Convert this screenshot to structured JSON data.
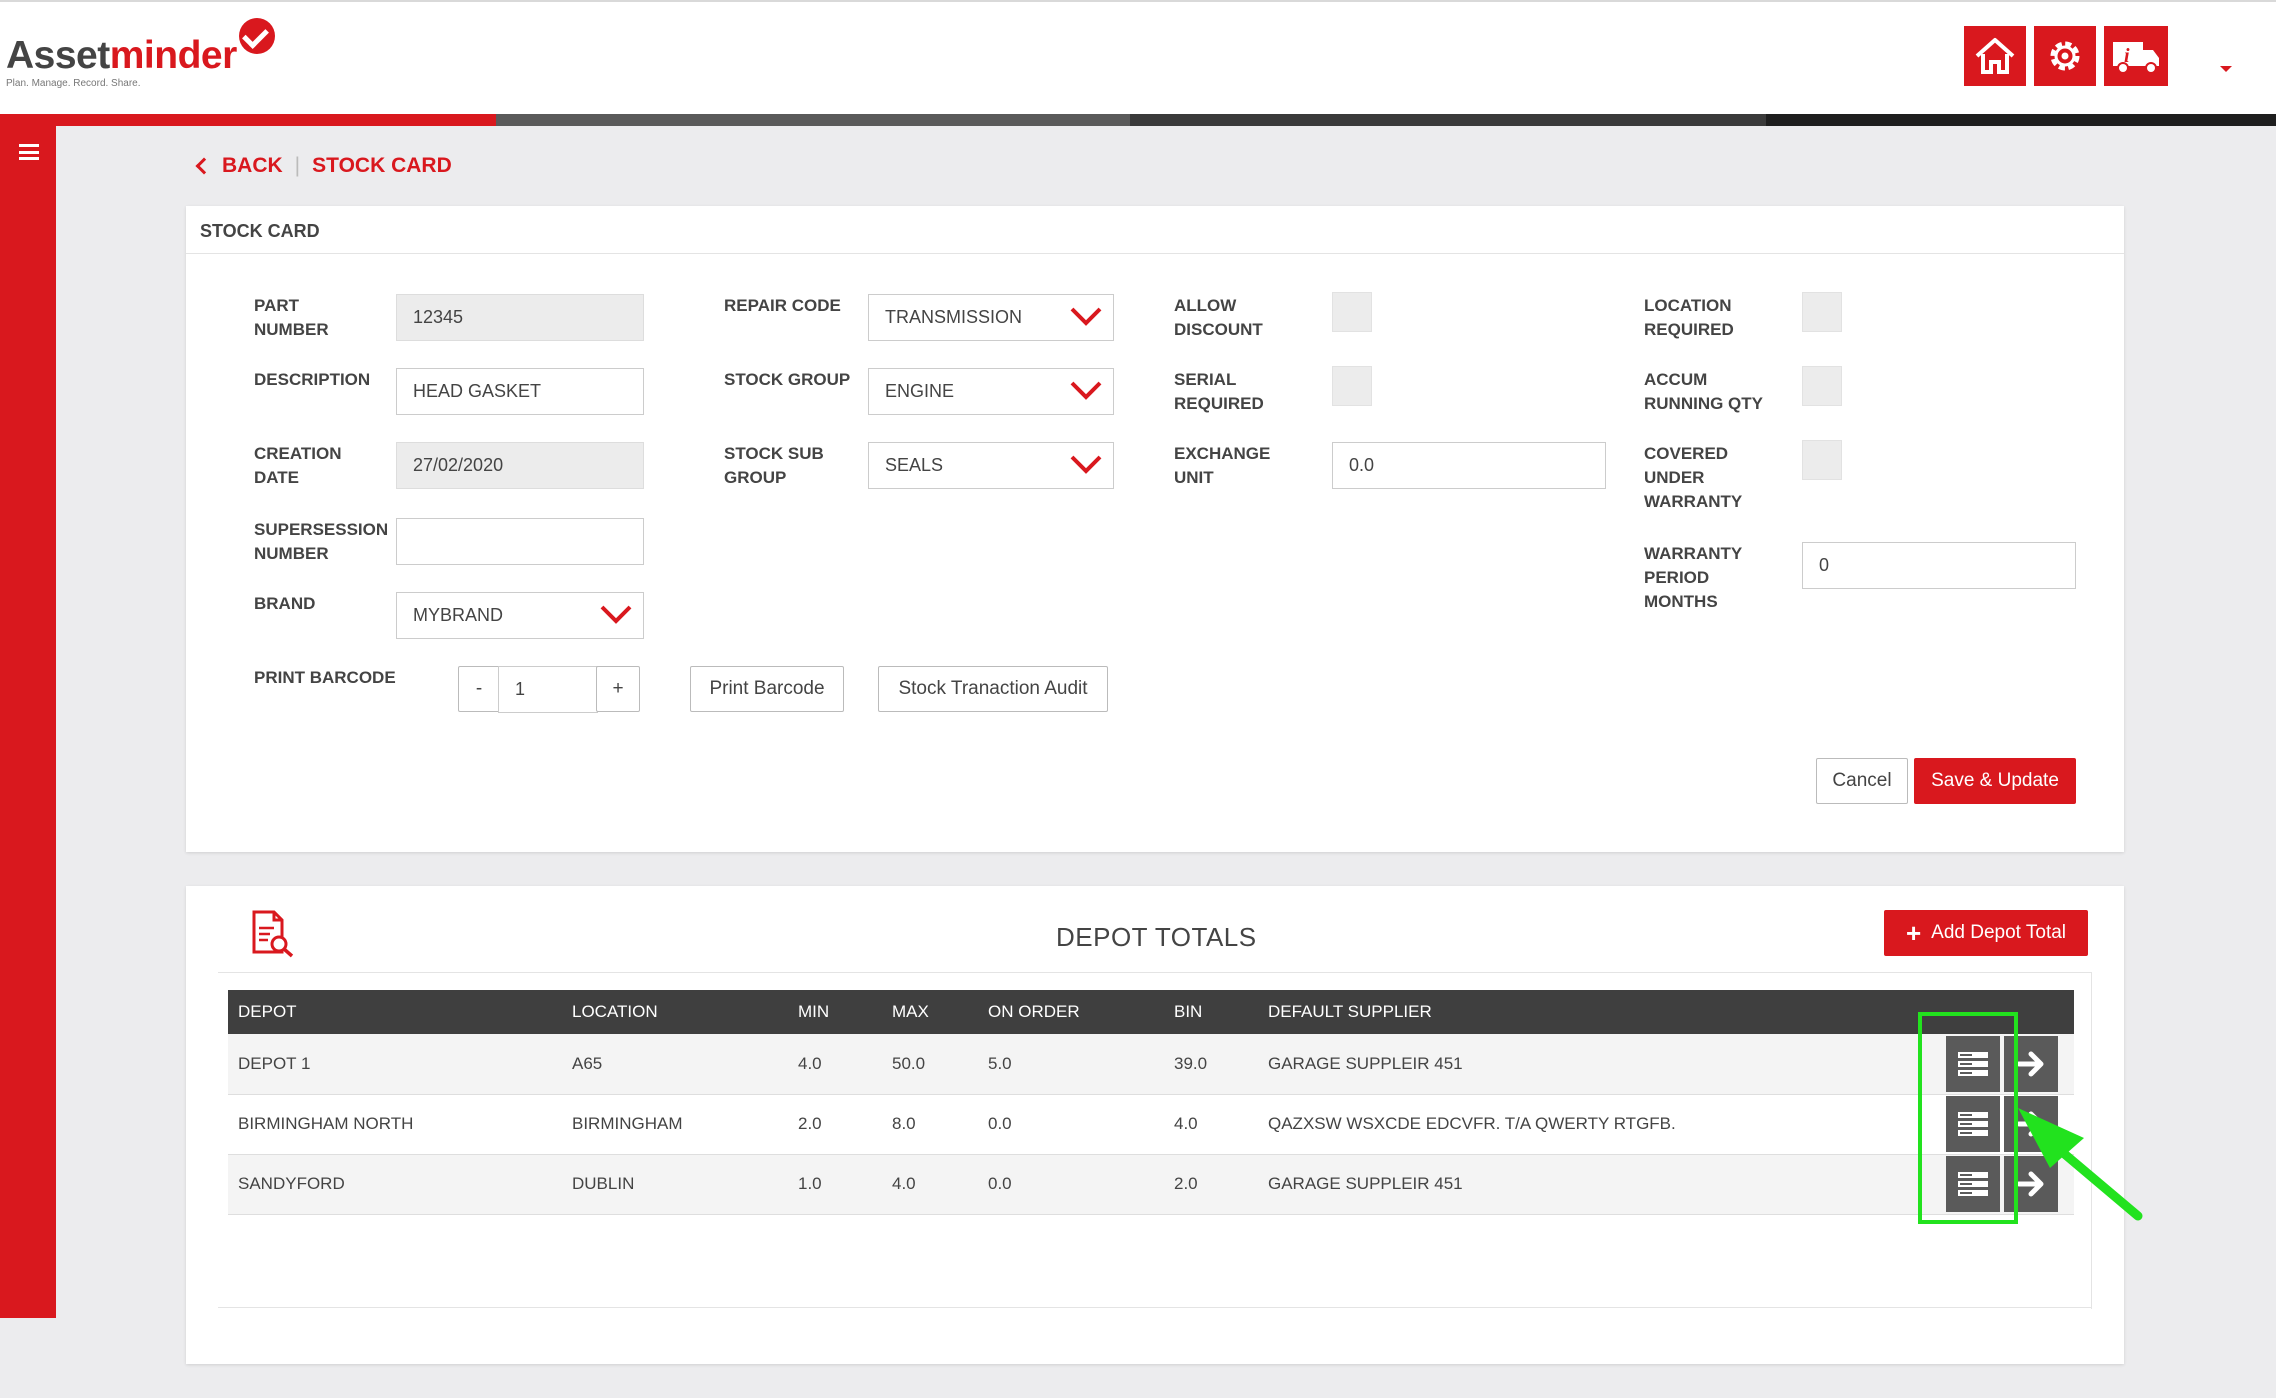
{
  "app": {
    "logo_main": "Asset",
    "logo_accent": "minder",
    "tagline": "Plan. Manage. Record. Share."
  },
  "header": {
    "icons": [
      "home-icon",
      "gear-icon",
      "truck-info-icon"
    ],
    "stripe_colors": [
      "#d9181e",
      "#5a5a5a",
      "#3a3a3a",
      "#1e1e1e"
    ]
  },
  "breadcrumb": {
    "back": "BACK",
    "current": "STOCK CARD"
  },
  "stock_card": {
    "title": "STOCK CARD",
    "part_number": {
      "label1": "PART",
      "label2": "NUMBER",
      "value": "12345"
    },
    "description": {
      "label": "DESCRIPTION",
      "value": "HEAD GASKET"
    },
    "creation_date": {
      "label1": "CREATION",
      "label2": "DATE",
      "value": "27/02/2020"
    },
    "supersession": {
      "label1": "SUPERSESSION",
      "label2": "NUMBER",
      "value": ""
    },
    "brand": {
      "label": "BRAND",
      "value": "MYBRAND"
    },
    "print_barcode": {
      "label": "PRINT BARCODE",
      "minus": "-",
      "qty": "1",
      "plus": "+"
    },
    "repair_code": {
      "label": "REPAIR CODE",
      "value": "TRANSMISSION"
    },
    "stock_group": {
      "label": "STOCK GROUP",
      "value": "ENGINE"
    },
    "stock_sub_group": {
      "label1": "STOCK SUB",
      "label2": "GROUP",
      "value": "SEALS"
    },
    "allow_discount": {
      "label1": "ALLOW",
      "label2": "DISCOUNT"
    },
    "serial_required": {
      "label1": "SERIAL",
      "label2": "REQUIRED"
    },
    "exchange_unit": {
      "label1": "EXCHANGE",
      "label2": "UNIT",
      "value": "0.0"
    },
    "location_required": {
      "label1": "LOCATION",
      "label2": "REQUIRED"
    },
    "accum_running_qty": {
      "label1": "ACCUM",
      "label2": "RUNNING QTY"
    },
    "covered_warranty": {
      "label1": "COVERED",
      "label2": "UNDER",
      "label3": "WARRANTY"
    },
    "warranty_period": {
      "label1": "WARRANTY",
      "label2": "PERIOD",
      "label3": "MONTHS",
      "value": "0"
    },
    "buttons": {
      "print_barcode": "Print Barcode",
      "audit": "Stock Tranaction Audit",
      "cancel": "Cancel",
      "save": "Save & Update"
    }
  },
  "depot_totals": {
    "title": "DEPOT TOTALS",
    "add_button": "Add Depot Total",
    "columns": [
      "DEPOT",
      "LOCATION",
      "MIN",
      "MAX",
      "ON ORDER",
      "BIN",
      "DEFAULT SUPPLIER"
    ],
    "rows": [
      {
        "depot": "DEPOT 1",
        "location": "A65",
        "min": "4.0",
        "max": "50.0",
        "on_order": "5.0",
        "bin": "39.0",
        "supplier": "GARAGE SUPPLEIR 451"
      },
      {
        "depot": "BIRMINGHAM NORTH",
        "location": "BIRMINGHAM",
        "min": "2.0",
        "max": "8.0",
        "on_order": "0.0",
        "bin": "4.0",
        "supplier": "QAZXSW WSXCDE EDCVFR. T/A QWERTY RTGFB."
      },
      {
        "depot": "SANDYFORD",
        "location": "DUBLIN",
        "min": "1.0",
        "max": "4.0",
        "on_order": "0.0",
        "bin": "2.0",
        "supplier": "GARAGE SUPPLEIR 451"
      }
    ]
  },
  "annotation": {
    "highlight_color": "#22e21e"
  }
}
